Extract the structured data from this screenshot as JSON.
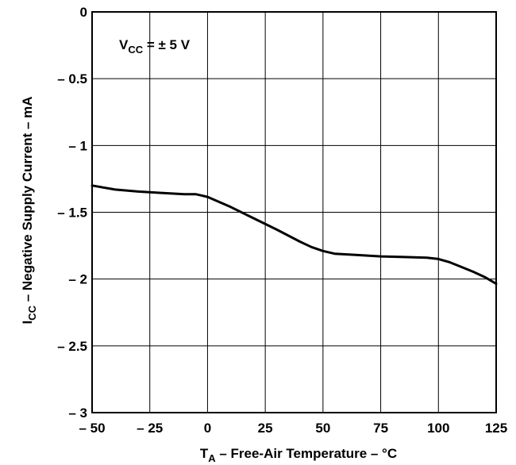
{
  "chart_data": {
    "type": "line",
    "title": "",
    "xlabel": {
      "main": "T",
      "sub": "A",
      "rest": " – Free-Air Temperature – °C"
    },
    "ylabel": {
      "main": "I",
      "sub": "CC",
      "rest": " – Negative Supply Current – mA"
    },
    "annotation": {
      "main": "V",
      "sub": "CC",
      "rest": " = ± 5 V"
    },
    "xlim": [
      -50,
      125
    ],
    "ylim": [
      -3,
      0
    ],
    "x_ticks": [
      -50,
      -25,
      0,
      25,
      50,
      75,
      100,
      125
    ],
    "x_tick_labels": [
      "– 50",
      "– 25",
      "0",
      "25",
      "50",
      "75",
      "100",
      "125"
    ],
    "y_ticks": [
      0,
      -0.5,
      -1,
      -1.5,
      -2,
      -2.5,
      -3
    ],
    "y_tick_labels": [
      "0",
      "– 0.5",
      "– 1",
      "– 1.5",
      "– 2",
      "– 2.5",
      "– 3"
    ],
    "grid": true,
    "series": [
      {
        "x": [
          -50,
          -40,
          -30,
          -20,
          -10,
          -5,
          0,
          10,
          20,
          30,
          40,
          45,
          50,
          55,
          65,
          75,
          85,
          95,
          100,
          105,
          110,
          115,
          120,
          125
        ],
        "y": [
          -1.3,
          -1.33,
          -1.345,
          -1.355,
          -1.365,
          -1.365,
          -1.385,
          -1.46,
          -1.545,
          -1.63,
          -1.72,
          -1.76,
          -1.79,
          -1.81,
          -1.82,
          -1.83,
          -1.835,
          -1.84,
          -1.85,
          -1.875,
          -1.91,
          -1.945,
          -1.985,
          -2.035
        ],
        "color": "#000000"
      }
    ]
  }
}
